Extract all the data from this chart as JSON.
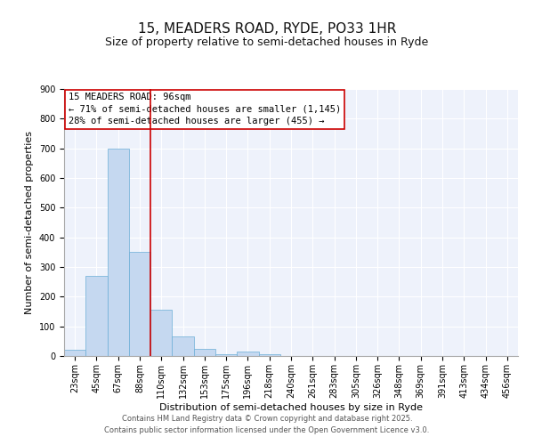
{
  "title": "15, MEADERS ROAD, RYDE, PO33 1HR",
  "subtitle": "Size of property relative to semi-detached houses in Ryde",
  "xlabel": "Distribution of semi-detached houses by size in Ryde",
  "ylabel": "Number of semi-detached properties",
  "bar_labels": [
    "23sqm",
    "45sqm",
    "67sqm",
    "88sqm",
    "110sqm",
    "132sqm",
    "153sqm",
    "175sqm",
    "196sqm",
    "218sqm",
    "240sqm",
    "261sqm",
    "283sqm",
    "305sqm",
    "326sqm",
    "348sqm",
    "369sqm",
    "391sqm",
    "413sqm",
    "434sqm",
    "456sqm"
  ],
  "bar_values": [
    20,
    270,
    700,
    350,
    155,
    65,
    25,
    5,
    15,
    5,
    0,
    0,
    0,
    0,
    0,
    0,
    0,
    0,
    0,
    0,
    0
  ],
  "bar_color": "#c5d8f0",
  "bar_edgecolor": "#6baed6",
  "background_color": "#eef2fb",
  "grid_color": "#ffffff",
  "vline_color": "#cc0000",
  "annotation_text": "15 MEADERS ROAD: 96sqm\n← 71% of semi-detached houses are smaller (1,145)\n28% of semi-detached houses are larger (455) →",
  "annotation_box_edgecolor": "#cc0000",
  "ylim": [
    0,
    900
  ],
  "yticks": [
    0,
    100,
    200,
    300,
    400,
    500,
    600,
    700,
    800,
    900
  ],
  "footer_line1": "Contains HM Land Registry data © Crown copyright and database right 2025.",
  "footer_line2": "Contains public sector information licensed under the Open Government Licence v3.0.",
  "title_fontsize": 11,
  "subtitle_fontsize": 9,
  "axis_label_fontsize": 8,
  "tick_fontsize": 7,
  "annotation_fontsize": 7.5,
  "footer_fontsize": 6
}
